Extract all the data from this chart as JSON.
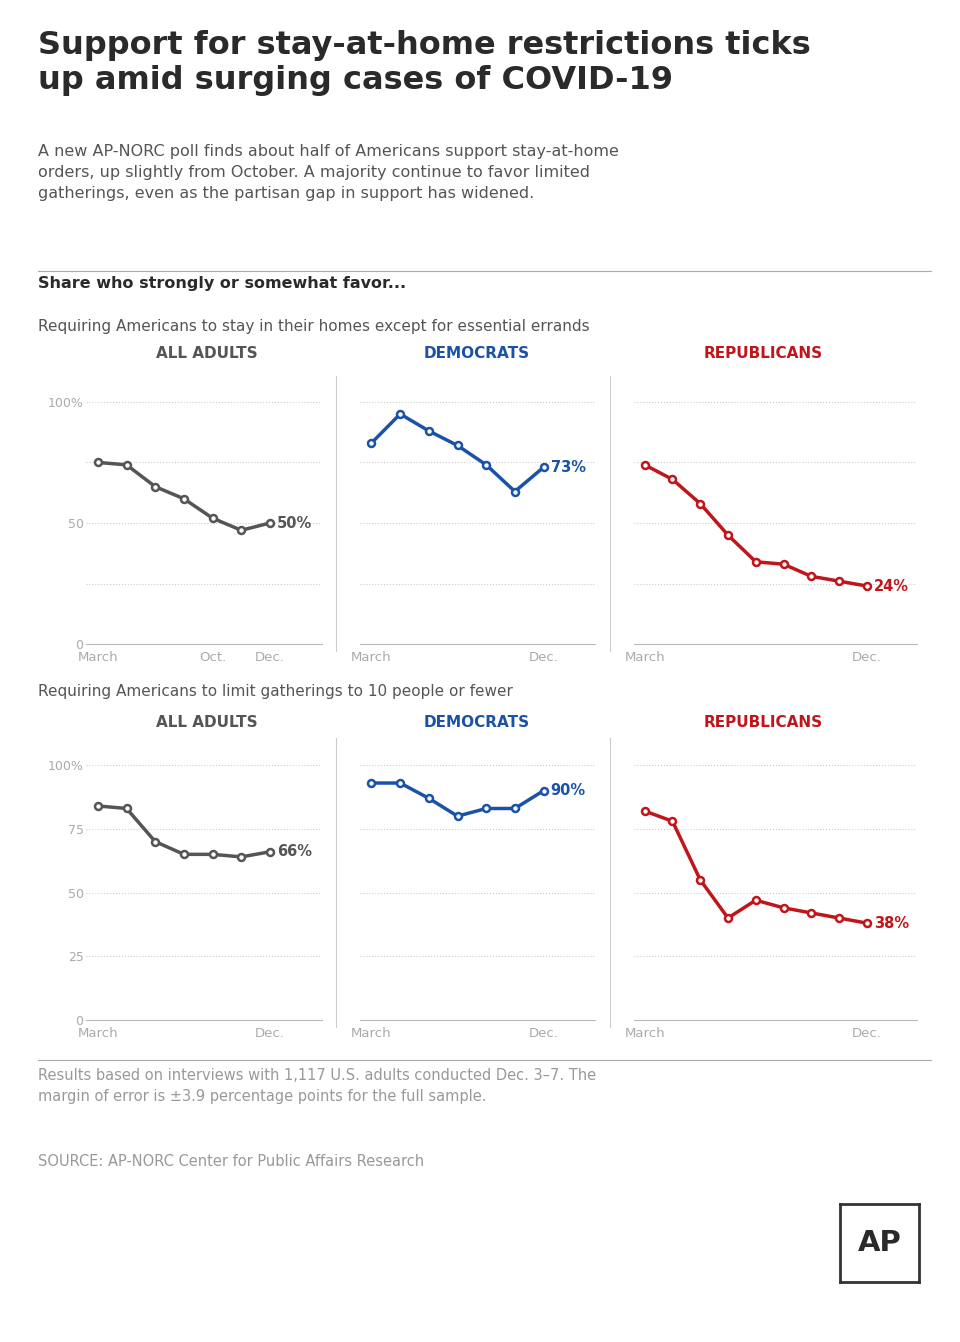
{
  "title": "Support for stay-at-home restrictions ticks\nup amid surging cases of COVID-19",
  "subtitle": "A new AP-NORC poll finds about half of Americans support stay-at-home\norders, up slightly from October. A majority continue to favor limited\ngatherings, even as the partisan gap in support has widened.",
  "section_label": "Share who strongly or somewhat favor...",
  "row1_label": "Requiring Americans to stay in their homes except for essential errands",
  "row2_label": "Requiring Americans to limit gatherings to 10 people or fewer",
  "col_labels": [
    "ALL ADULTS",
    "DEMOCRATS",
    "REPUBLICANS"
  ],
  "col_colors": [
    "#555555",
    "#1a52a8",
    "#c0151a"
  ],
  "footer": "Results based on interviews with 1,117 U.S. adults conducted Dec. 3–7. The\nmargin of error is ±3.9 percentage points for the full sample.",
  "source": "SOURCE: AP-NORC Center for Public Affairs Research",
  "row1_all_adults_x": [
    0,
    1,
    2,
    3,
    4,
    5,
    6
  ],
  "row1_all_adults_y": [
    75,
    74,
    65,
    60,
    52,
    47,
    50
  ],
  "row1_all_adults_last": "50%",
  "row1_all_adults_has_oct": true,
  "row1_democrats_x": [
    0,
    1,
    2,
    3,
    4,
    5,
    6
  ],
  "row1_democrats_y": [
    83,
    95,
    88,
    82,
    74,
    63,
    73
  ],
  "row1_democrats_last": "73%",
  "row1_democrats_has_oct": false,
  "row1_republicans_x": [
    0,
    1,
    2,
    3,
    4,
    5,
    6,
    7,
    8
  ],
  "row1_republicans_y": [
    74,
    68,
    58,
    45,
    34,
    33,
    28,
    26,
    24
  ],
  "row1_republicans_last": "24%",
  "row1_republicans_has_oct": false,
  "row2_all_adults_x": [
    0,
    1,
    2,
    3,
    4,
    5,
    6
  ],
  "row2_all_adults_y": [
    84,
    83,
    70,
    65,
    65,
    64,
    66
  ],
  "row2_all_adults_last": "66%",
  "row2_all_adults_has_oct": false,
  "row2_democrats_x": [
    0,
    1,
    2,
    3,
    4,
    5,
    6
  ],
  "row2_democrats_y": [
    93,
    93,
    87,
    80,
    83,
    83,
    90
  ],
  "row2_democrats_last": "90%",
  "row2_democrats_has_oct": false,
  "row2_republicans_x": [
    0,
    1,
    2,
    3,
    4,
    5,
    6,
    7,
    8
  ],
  "row2_republicans_y": [
    82,
    78,
    55,
    40,
    47,
    44,
    42,
    40,
    38
  ],
  "row2_republicans_last": "38%",
  "row2_republicans_has_oct": false,
  "row1_yticks": [
    0,
    25,
    50,
    75,
    100
  ],
  "row1_ytick_labels_left": [
    "0",
    "",
    "50",
    "",
    "100%"
  ],
  "row2_yticks": [
    0,
    25,
    50,
    75,
    100
  ],
  "row2_ytick_labels_left": [
    "0",
    "25",
    "50",
    "75",
    "100%"
  ],
  "ylim": [
    0,
    108
  ],
  "bg_color": "#ffffff",
  "line_width": 2.5,
  "marker_size": 5,
  "grid_color": "#cccccc",
  "text_dark": "#2a2a2a",
  "text_medium": "#555555",
  "text_light": "#999999",
  "tick_color": "#aaaaaa"
}
